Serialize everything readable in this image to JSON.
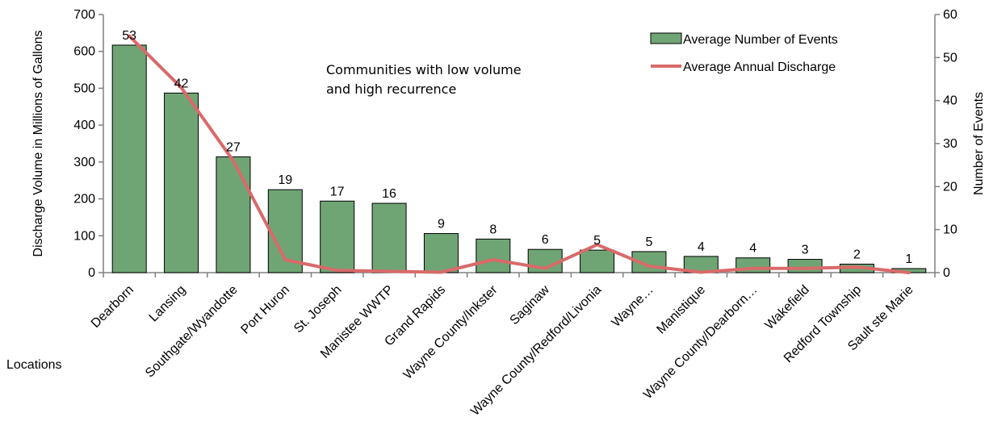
{
  "chart_data": {
    "type": "bar",
    "categories": [
      "Dearborn",
      "Lansing",
      "Southgate/Wyandotte",
      "Port Huron",
      "St. Joseph",
      "Manistee WWTP",
      "Grand Rapids",
      "Wayne County/Inkster",
      "Saginaw",
      "Wayne County/Redford/Livonia",
      "Wayne…",
      "Manistique",
      "Wayne County/Dearborn…",
      "Wakefield",
      "Redford Township",
      "Sault ste Marie"
    ],
    "series": [
      {
        "name": "Average Number of Events",
        "type": "bar",
        "axis": "left",
        "values": [
          617,
          487,
          314,
          225,
          194,
          188,
          106,
          91,
          63,
          61,
          57,
          44,
          40,
          36,
          23,
          11
        ],
        "data_labels": [
          "53",
          "42",
          "27",
          "19",
          "17",
          "16",
          "9",
          "8",
          "6",
          "5",
          "5",
          "4",
          "4",
          "3",
          "2",
          "1"
        ],
        "color": "#6fa574"
      },
      {
        "name": "Average Annual Discharge",
        "type": "line",
        "axis": "right",
        "values": [
          55,
          43,
          26,
          3,
          0.5,
          0.3,
          0.1,
          3,
          1,
          6.5,
          1.5,
          0.1,
          1,
          1,
          1.3,
          0
        ],
        "color": "#d96a6a"
      }
    ],
    "title": "",
    "xlabel": "Locations",
    "ylabel": "Discharge Volume in Millions of Gallons",
    "y2label": "Number of Events",
    "ylim": [
      0,
      700
    ],
    "y2lim": [
      0,
      60
    ],
    "yticks": [
      "0",
      "100",
      "200",
      "300",
      "400",
      "500",
      "600",
      "700"
    ],
    "y2ticks": [
      "0",
      "10",
      "20",
      "30",
      "40",
      "50",
      "60"
    ],
    "annotation": [
      "Communities with low volume",
      "and high recurrence"
    ],
    "legend_position": "top-right",
    "grid": false
  }
}
